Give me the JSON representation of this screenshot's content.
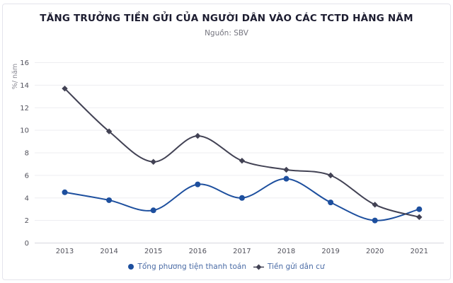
{
  "header": {
    "title": "TĂNG TRƯỞNG TIỀN GỬI CỦA NGƯỜI DÂN VÀO CÁC TCTD HÀNG NĂM",
    "subtitle": "Nguồn: SBV"
  },
  "chart_data": {
    "type": "line",
    "smooth": true,
    "grid": true,
    "legend_position": "bottom",
    "title": "TĂNG TRƯỞNG TIỀN GỬI CỦA NGƯỜI DÂN VÀO CÁC TCTD HÀNG NĂM",
    "subtitle": "Nguồn: SBV",
    "xlabel": "",
    "ylabel": "%/ năm",
    "ylim": [
      0,
      16
    ],
    "yticks": [
      0,
      2,
      4,
      6,
      8,
      10,
      12,
      14,
      16
    ],
    "categories": [
      "2013",
      "2014",
      "2015",
      "2016",
      "2017",
      "2018",
      "2019",
      "2020",
      "2021"
    ],
    "series": [
      {
        "name": "Tổng phương tiện thanh toán",
        "marker": "circle",
        "color": "#1d4f9e",
        "values": [
          4.5,
          3.8,
          2.9,
          5.2,
          4.0,
          5.7,
          3.6,
          2.0,
          3.0
        ]
      },
      {
        "name": "Tiền gửi dân cư",
        "marker": "diamond",
        "color": "#424254",
        "values": [
          13.7,
          9.9,
          7.2,
          9.5,
          7.3,
          6.5,
          6.0,
          3.4,
          2.3
        ]
      }
    ]
  },
  "colors": {
    "title": "#1c1c30",
    "subtitle": "#75757f",
    "gridline": "#ededf1",
    "baseline": "#d8d8de",
    "tick_label": "#52525c",
    "axis_title": "#8a8a94",
    "legend_text": "#4a6ba5",
    "card_border": "#e4e4ec",
    "background": "#ffffff"
  }
}
